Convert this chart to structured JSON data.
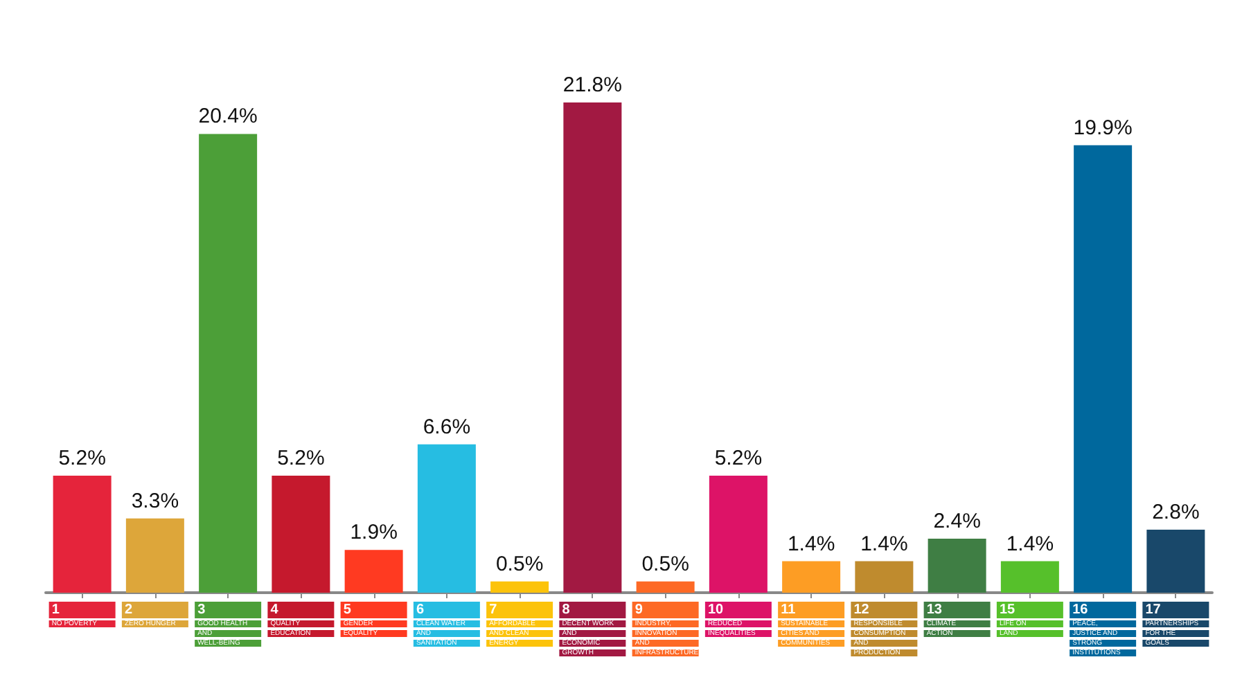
{
  "chart_data": {
    "type": "bar",
    "categories": [
      "1 NO POVERTY",
      "2 ZERO HUNGER",
      "3 GOOD HEALTH AND WELL-BEING",
      "4 QUALITY EDUCATION",
      "5 GENDER EQUALITY",
      "6 CLEAN WATER AND SANITATION",
      "7 AFFORDABLE AND CLEAN ENERGY",
      "8 DECENT WORK AND ECONOMIC GROWTH",
      "9 INDUSTRY, INNOVATION AND INFRASTRUCTURE",
      "10 REDUCED INEQUALITIES",
      "11 SUSTAINABLE CITIES AND COMMUNITIES",
      "12 RESPONSIBLE CONSUMPTION AND PRODUCTION",
      "13 CLIMATE ACTION",
      "15 LIFE ON LAND",
      "16 PEACE, JUSTICE AND STRONG INSTITUTIONS",
      "17 PARTNERSHIPS FOR THE GOALS"
    ],
    "values": [
      5.2,
      3.3,
      20.4,
      5.2,
      1.9,
      6.6,
      0.5,
      21.8,
      0.5,
      5.2,
      1.4,
      1.4,
      2.4,
      1.4,
      19.9,
      2.8
    ],
    "value_labels": [
      "5.2%",
      "3.3%",
      "20.4%",
      "5.2%",
      "1.9%",
      "6.6%",
      "0.5%",
      "21.8%",
      "0.5%",
      "5.2%",
      "1.4%",
      "1.4%",
      "2.4%",
      "1.4%",
      "19.9%",
      "2.8%"
    ],
    "colors": [
      "#e5243b",
      "#dda63a",
      "#4c9f38",
      "#c5192d",
      "#ff3a21",
      "#26bde2",
      "#fcc30b",
      "#a21942",
      "#fd6925",
      "#dd1367",
      "#fd9d24",
      "#bf8b2e",
      "#3f7e44",
      "#56c02b",
      "#00689d",
      "#19486a"
    ],
    "tick_labels": "x",
    "grid": false
  }
}
